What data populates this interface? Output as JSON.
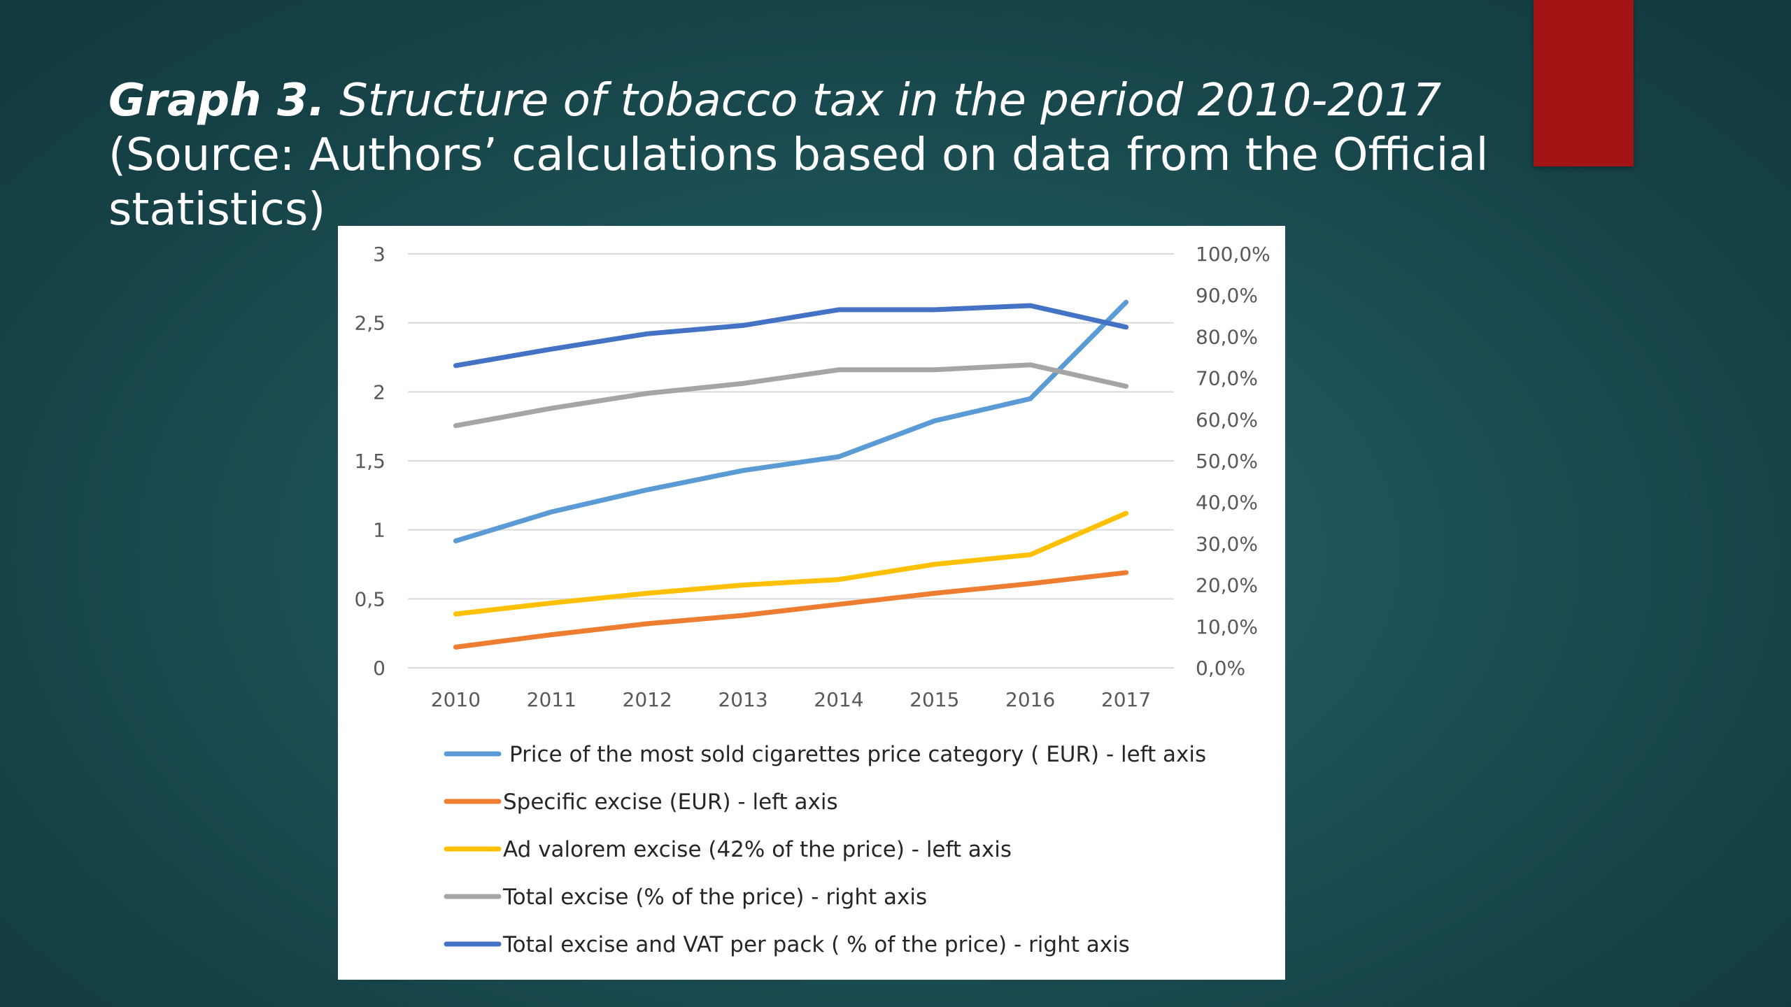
{
  "slide": {
    "title_lead": "Graph 3.",
    "title_rest": " Structure of tobacco tax in the period 2010-2017",
    "subtitle_line1": "(Source: Authors’ calculations based on data from the Official",
    "subtitle_line2": "statistics)",
    "accent_color": "#a31514"
  },
  "chart_data": {
    "type": "line",
    "title": "",
    "xlabel": "",
    "ylabel": "",
    "categories": [
      "2010",
      "2011",
      "2012",
      "2013",
      "2014",
      "2015",
      "2016",
      "2017"
    ],
    "ylim": [
      0,
      3
    ],
    "y_ticks": [
      "0",
      "0,5",
      "1",
      "1,5",
      "2",
      "2,5",
      "3"
    ],
    "y2lim": [
      0,
      1
    ],
    "y2_ticks": [
      "0,0%",
      "10,0%",
      "20,0%",
      "30,0%",
      "40,0%",
      "50,0%",
      "60,0%",
      "70,0%",
      "80,0%",
      "90,0%",
      "100,0%"
    ],
    "grid": true,
    "legend_position": "bottom",
    "series": [
      {
        "name": "Price of the most sold cigarettes price category ( EUR) - left axis",
        "axis": "left",
        "color": "#5b9bd5",
        "values": [
          0.92,
          1.13,
          1.29,
          1.43,
          1.53,
          1.79,
          1.95,
          2.65
        ]
      },
      {
        "name": "Specific excise (EUR) - left axis",
        "axis": "left",
        "color": "#ed7d31",
        "values": [
          0.15,
          0.24,
          0.32,
          0.38,
          0.46,
          0.54,
          0.61,
          0.69
        ]
      },
      {
        "name": "Ad valorem excise (42% of the price) - left axis",
        "axis": "left",
        "color": "#ffc000",
        "values": [
          0.39,
          0.47,
          0.54,
          0.6,
          0.64,
          0.75,
          0.82,
          1.12
        ]
      },
      {
        "name": "Total excise  (% of the price) - right axis",
        "axis": "right",
        "color": "#a5a5a5",
        "values": [
          0.585,
          0.627,
          0.663,
          0.687,
          0.72,
          0.72,
          0.732,
          0.68
        ]
      },
      {
        "name": "Total excise and VAT per pack ( % of the price) - right axis",
        "axis": "right",
        "color": "#4472c4",
        "values": [
          0.73,
          0.77,
          0.807,
          0.827,
          0.865,
          0.865,
          0.875,
          0.823
        ]
      }
    ]
  }
}
